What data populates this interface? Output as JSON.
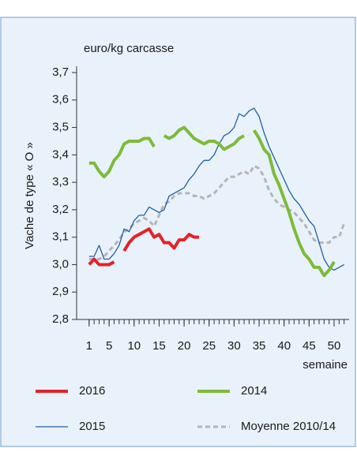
{
  "chart_data": {
    "type": "line",
    "ylabel": "Vache de type « O »",
    "unit_label": "euro/kg carcasse",
    "xlabel": "semaine",
    "x": [
      1,
      2,
      3,
      4,
      5,
      6,
      7,
      8,
      9,
      10,
      11,
      12,
      13,
      14,
      15,
      16,
      17,
      18,
      19,
      20,
      21,
      22,
      23,
      24,
      25,
      26,
      27,
      28,
      29,
      30,
      31,
      32,
      33,
      34,
      35,
      36,
      37,
      38,
      39,
      40,
      41,
      42,
      43,
      44,
      45,
      46,
      47,
      48,
      49,
      50,
      51,
      52
    ],
    "xlim": [
      -1.5,
      53
    ],
    "xticks": [
      1,
      5,
      10,
      15,
      20,
      25,
      30,
      35,
      40,
      45,
      50
    ],
    "ylim": [
      2.8,
      3.7
    ],
    "yticks": [
      {
        "value": 2.8,
        "label": "2,8"
      },
      {
        "value": 2.9,
        "label": "2,9"
      },
      {
        "value": 3.0,
        "label": "3,0"
      },
      {
        "value": 3.1,
        "label": "3,1"
      },
      {
        "value": 3.2,
        "label": "3,2"
      },
      {
        "value": 3.3,
        "label": "3,3"
      },
      {
        "value": 3.4,
        "label": "3,4"
      },
      {
        "value": 3.5,
        "label": "3,5"
      },
      {
        "value": 3.6,
        "label": "3,6"
      },
      {
        "value": 3.7,
        "label": "3,7"
      }
    ],
    "grid": false,
    "series": [
      {
        "name": "2016",
        "color": "#e3232a",
        "width": 4,
        "dash": false,
        "values": [
          3.0,
          3.02,
          3.0,
          3.0,
          3.0,
          3.01,
          null,
          3.05,
          3.08,
          3.1,
          3.11,
          3.12,
          3.13,
          3.1,
          3.11,
          3.08,
          3.08,
          3.06,
          3.09,
          3.09,
          3.11,
          3.1,
          3.1,
          null,
          null,
          null,
          null,
          null,
          null,
          null,
          null,
          null,
          null,
          null,
          null,
          null,
          null,
          null,
          null,
          null,
          null,
          null,
          null,
          null,
          null,
          null,
          null,
          null,
          null,
          null,
          null,
          null
        ]
      },
      {
        "name": "2014",
        "color": "#7dbb3a",
        "width": 4,
        "dash": false,
        "values": [
          3.37,
          3.37,
          3.34,
          3.32,
          3.34,
          3.38,
          3.4,
          3.44,
          3.45,
          3.45,
          3.45,
          3.46,
          3.46,
          3.43,
          null,
          3.47,
          3.46,
          3.47,
          3.49,
          3.5,
          3.48,
          3.46,
          3.45,
          3.44,
          3.45,
          3.45,
          3.44,
          3.42,
          3.43,
          3.44,
          3.46,
          3.47,
          null,
          3.49,
          3.46,
          3.42,
          3.4,
          3.33,
          3.29,
          3.24,
          3.19,
          3.13,
          3.08,
          3.04,
          3.02,
          2.99,
          2.99,
          2.96,
          2.98,
          3.01,
          null,
          null
        ]
      },
      {
        "name": "2015",
        "color": "#1f5fa8",
        "width": 1.3,
        "dash": false,
        "values": [
          3.03,
          3.03,
          3.07,
          3.02,
          3.02,
          3.04,
          3.07,
          3.13,
          3.12,
          3.16,
          3.18,
          3.18,
          3.21,
          3.2,
          3.19,
          3.2,
          3.25,
          3.26,
          3.27,
          3.28,
          3.31,
          3.33,
          3.36,
          3.38,
          3.38,
          3.4,
          3.44,
          3.47,
          3.48,
          3.5,
          3.55,
          3.54,
          3.56,
          3.57,
          3.54,
          3.48,
          3.43,
          3.39,
          3.35,
          3.31,
          3.27,
          3.24,
          3.22,
          3.19,
          3.16,
          3.14,
          3.08,
          3.02,
          2.99,
          2.98,
          2.99,
          3.0
        ]
      },
      {
        "name": "Moyenne 2010/14",
        "color": "#b5b5b5",
        "width": 3,
        "dash": true,
        "values": [
          3.02,
          3.02,
          3.02,
          3.03,
          3.05,
          3.07,
          3.09,
          3.12,
          3.13,
          3.15,
          3.16,
          3.17,
          3.16,
          3.14,
          3.18,
          3.22,
          3.23,
          3.25,
          3.26,
          3.26,
          3.26,
          3.25,
          3.25,
          3.24,
          3.25,
          3.26,
          3.28,
          3.3,
          3.32,
          3.32,
          3.33,
          3.34,
          3.33,
          3.36,
          3.35,
          3.32,
          3.27,
          3.24,
          3.22,
          3.21,
          3.2,
          3.19,
          3.17,
          3.15,
          3.12,
          3.09,
          3.08,
          3.08,
          3.08,
          3.1,
          3.1,
          3.15
        ]
      }
    ]
  }
}
